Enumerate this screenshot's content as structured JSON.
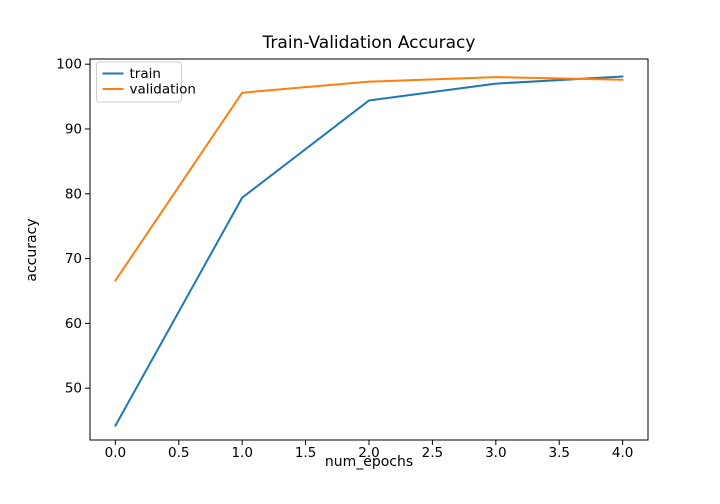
{
  "chart_data": {
    "type": "line",
    "title": "Train-Validation Accuracy",
    "xlabel": "num_epochs",
    "ylabel": "accuracy",
    "x": [
      0,
      1,
      2,
      3,
      4
    ],
    "series": [
      {
        "name": "train",
        "color": "#1f77b4",
        "values": [
          44.2,
          79.4,
          94.4,
          97.0,
          98.1
        ]
      },
      {
        "name": "validation",
        "color": "#ff7f0e",
        "values": [
          66.6,
          95.6,
          97.3,
          98.0,
          97.6
        ]
      }
    ],
    "xticks": {
      "values": [
        0,
        0.5,
        1,
        1.5,
        2,
        2.5,
        3,
        3.5,
        4
      ],
      "labels": [
        "0.0",
        "0.5",
        "1.0",
        "1.5",
        "2.0",
        "2.5",
        "3.0",
        "3.5",
        "4.0"
      ]
    },
    "yticks": {
      "values": [
        50,
        60,
        70,
        80,
        90,
        100
      ],
      "labels": [
        "50",
        "60",
        "70",
        "80",
        "90",
        "100"
      ]
    },
    "xlim": [
      -0.2,
      4.2
    ],
    "ylim": [
      42.0,
      100.8
    ],
    "grid": false,
    "legend": {
      "position": "upper-left",
      "entries": [
        "train",
        "validation"
      ]
    },
    "colors": {
      "spine": "#000000",
      "legend_border": "#cccccc",
      "background": "#ffffff"
    }
  }
}
